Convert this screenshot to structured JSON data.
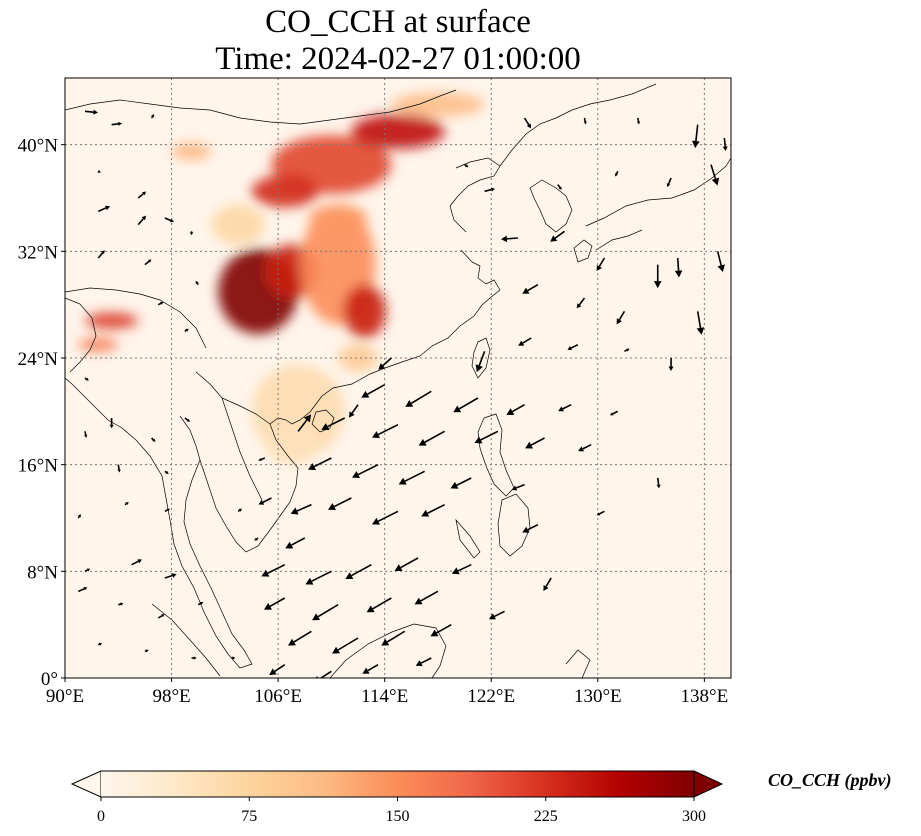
{
  "title": {
    "line1": "CO_CCH at surface",
    "line2": "Time: 2024-02-27 01:00:00"
  },
  "map": {
    "lon_range": [
      90,
      140
    ],
    "lat_range": [
      0,
      45
    ],
    "lon_ticks": [
      90,
      98,
      106,
      114,
      122,
      130,
      138
    ],
    "lat_ticks": [
      0,
      8,
      16,
      24,
      32,
      40
    ],
    "lon_tick_labels": [
      "90°E",
      "98°E",
      "106°E",
      "114°E",
      "122°E",
      "130°E",
      "138°E"
    ],
    "lat_tick_labels": [
      "0°",
      "8°N",
      "16°N",
      "24°N",
      "32°N",
      "40°N"
    ],
    "gridlines": true,
    "background_color": "#fff5eb"
  },
  "colorbar": {
    "label": "CO_CCH (ppbv)",
    "ticks": [
      0,
      75,
      150,
      225,
      300
    ],
    "tick_labels": [
      "0",
      "75",
      "150",
      "225",
      "300"
    ],
    "range": [
      0,
      300
    ],
    "extend": "both",
    "colormap": "OrRd",
    "colors": [
      "#fff7ec",
      "#fee8c8",
      "#fdd49e",
      "#fdbb84",
      "#fc8d59",
      "#ef6548",
      "#d7301f",
      "#b30000",
      "#7f0000"
    ]
  },
  "plumes": [
    {
      "lon": 104.5,
      "lat": 29.0,
      "rlon": 3.0,
      "rlat": 3.2,
      "value": 300
    },
    {
      "lon": 107.0,
      "lat": 30.5,
      "rlon": 2.0,
      "rlat": 2.0,
      "value": 240
    },
    {
      "lon": 110.5,
      "lat": 31.0,
      "rlon": 2.8,
      "rlat": 4.5,
      "value": 150
    },
    {
      "lon": 112.5,
      "lat": 27.5,
      "rlon": 1.6,
      "rlat": 2.0,
      "value": 240
    },
    {
      "lon": 110.0,
      "lat": 38.5,
      "rlon": 4.5,
      "rlat": 2.2,
      "value": 210
    },
    {
      "lon": 115.0,
      "lat": 41.0,
      "rlon": 3.5,
      "rlat": 1.3,
      "value": 250
    },
    {
      "lon": 106.5,
      "lat": 36.5,
      "rlon": 2.5,
      "rlat": 1.2,
      "value": 230
    },
    {
      "lon": 118.0,
      "lat": 43.0,
      "rlon": 3.5,
      "rlat": 0.9,
      "value": 110
    },
    {
      "lon": 110.5,
      "lat": 34.5,
      "rlon": 2.2,
      "rlat": 1.0,
      "value": 140
    },
    {
      "lon": 107.5,
      "lat": 20.0,
      "rlon": 3.5,
      "rlat": 3.5,
      "value": 60
    },
    {
      "lon": 107.0,
      "lat": 17.5,
      "rlon": 2.0,
      "rlat": 1.5,
      "value": 50
    },
    {
      "lon": 93.5,
      "lat": 26.8,
      "rlon": 2.0,
      "rlat": 0.6,
      "value": 220
    },
    {
      "lon": 92.5,
      "lat": 25.0,
      "rlon": 1.5,
      "rlat": 0.5,
      "value": 170
    },
    {
      "lon": 99.5,
      "lat": 39.5,
      "rlon": 1.5,
      "rlat": 0.6,
      "value": 120
    },
    {
      "lon": 103.0,
      "lat": 34.0,
      "rlon": 2.0,
      "rlat": 1.5,
      "value": 70
    },
    {
      "lon": 112.0,
      "lat": 24.0,
      "rlon": 1.5,
      "rlat": 1.0,
      "value": 90
    }
  ],
  "wind_vectors": [
    {
      "lon": 91.5,
      "lat": 42.5,
      "u": 1.0,
      "v": -0.1
    },
    {
      "lon": 93.5,
      "lat": 41.5,
      "u": 0.8,
      "v": 0.1
    },
    {
      "lon": 96.5,
      "lat": 42.0,
      "u": 0.2,
      "v": 0.3
    },
    {
      "lon": 92.5,
      "lat": 38.0,
      "u": 0.2,
      "v": -0.1
    },
    {
      "lon": 95.5,
      "lat": 36.0,
      "u": 0.6,
      "v": 0.5
    },
    {
      "lon": 92.5,
      "lat": 35.0,
      "u": 0.9,
      "v": 0.4
    },
    {
      "lon": 95.5,
      "lat": 34.0,
      "u": 0.6,
      "v": 0.7
    },
    {
      "lon": 97.5,
      "lat": 34.5,
      "u": 0.7,
      "v": -0.3
    },
    {
      "lon": 92.5,
      "lat": 31.5,
      "u": 0.5,
      "v": 0.6
    },
    {
      "lon": 96.0,
      "lat": 31.0,
      "u": 0.5,
      "v": 0.4
    },
    {
      "lon": 99.5,
      "lat": 33.5,
      "u": 0.0,
      "v": -0.3
    },
    {
      "lon": 100.0,
      "lat": 29.5,
      "u": -0.2,
      "v": 0.3
    },
    {
      "lon": 97.0,
      "lat": 28.0,
      "u": 0.4,
      "v": 0.2
    },
    {
      "lon": 99.0,
      "lat": 26.0,
      "u": 0.3,
      "v": 0.2
    },
    {
      "lon": 91.5,
      "lat": 22.5,
      "u": 0.3,
      "v": -0.2
    },
    {
      "lon": 93.5,
      "lat": 19.5,
      "u": 0.0,
      "v": -0.8
    },
    {
      "lon": 91.5,
      "lat": 18.5,
      "u": 0.1,
      "v": -0.5
    },
    {
      "lon": 96.5,
      "lat": 18.0,
      "u": 0.3,
      "v": -0.3
    },
    {
      "lon": 99.0,
      "lat": 19.5,
      "u": 0.4,
      "v": -0.3
    },
    {
      "lon": 94.0,
      "lat": 16.0,
      "u": 0.1,
      "v": -0.6
    },
    {
      "lon": 97.5,
      "lat": 15.5,
      "u": 0.3,
      "v": -0.2
    },
    {
      "lon": 91.0,
      "lat": 12.0,
      "u": 0.2,
      "v": 0.3
    },
    {
      "lon": 94.5,
      "lat": 13.0,
      "u": 0.3,
      "v": 0.2
    },
    {
      "lon": 97.5,
      "lat": 12.5,
      "u": 0.4,
      "v": 0.2
    },
    {
      "lon": 91.5,
      "lat": 8.0,
      "u": 0.4,
      "v": 0.2
    },
    {
      "lon": 95.0,
      "lat": 8.5,
      "u": 0.8,
      "v": 0.4
    },
    {
      "lon": 97.5,
      "lat": 7.5,
      "u": 0.9,
      "v": 0.3
    },
    {
      "lon": 91.0,
      "lat": 6.5,
      "u": 0.7,
      "v": 0.3
    },
    {
      "lon": 94.0,
      "lat": 5.5,
      "u": 0.4,
      "v": 0.1
    },
    {
      "lon": 97.0,
      "lat": 4.5,
      "u": 0.5,
      "v": 0.3
    },
    {
      "lon": 100.0,
      "lat": 5.5,
      "u": 0.4,
      "v": 0.2
    },
    {
      "lon": 92.5,
      "lat": 2.5,
      "u": 0.3,
      "v": 0.1
    },
    {
      "lon": 96.0,
      "lat": 2.0,
      "u": 0.3,
      "v": 0.1
    },
    {
      "lon": 99.5,
      "lat": 1.5,
      "u": 0.4,
      "v": 0.0
    },
    {
      "lon": 102.5,
      "lat": 1.5,
      "u": 0.3,
      "v": 0.0
    },
    {
      "lon": 103.0,
      "lat": 12.5,
      "u": 0.3,
      "v": 0.2
    },
    {
      "lon": 104.5,
      "lat": 10.5,
      "u": -0.3,
      "v": -0.2
    },
    {
      "lon": 108.0,
      "lat": 10.5,
      "u": -1.5,
      "v": -0.8
    },
    {
      "lon": 106.5,
      "lat": 8.5,
      "u": -1.8,
      "v": -0.9
    },
    {
      "lon": 110.0,
      "lat": 8.0,
      "u": -2.0,
      "v": -1.0
    },
    {
      "lon": 113.0,
      "lat": 8.5,
      "u": -2.0,
      "v": -1.1
    },
    {
      "lon": 116.5,
      "lat": 9.0,
      "u": -1.8,
      "v": -1.0
    },
    {
      "lon": 120.5,
      "lat": 8.5,
      "u": -1.5,
      "v": -0.7
    },
    {
      "lon": 106.5,
      "lat": 6.0,
      "u": -1.6,
      "v": -0.9
    },
    {
      "lon": 110.5,
      "lat": 5.5,
      "u": -2.0,
      "v": -1.2
    },
    {
      "lon": 114.5,
      "lat": 6.0,
      "u": -1.9,
      "v": -1.1
    },
    {
      "lon": 118.0,
      "lat": 6.5,
      "u": -1.8,
      "v": -1.0
    },
    {
      "lon": 108.5,
      "lat": 3.5,
      "u": -1.8,
      "v": -1.1
    },
    {
      "lon": 112.0,
      "lat": 3.0,
      "u": -2.0,
      "v": -1.2
    },
    {
      "lon": 115.5,
      "lat": 3.5,
      "u": -1.8,
      "v": -1.1
    },
    {
      "lon": 119.0,
      "lat": 4.0,
      "u": -1.6,
      "v": -0.9
    },
    {
      "lon": 123.0,
      "lat": 5.0,
      "u": -1.2,
      "v": -0.6
    },
    {
      "lon": 106.5,
      "lat": 1.0,
      "u": -1.2,
      "v": -0.8
    },
    {
      "lon": 110.0,
      "lat": 0.5,
      "u": -1.4,
      "v": -0.9
    },
    {
      "lon": 113.5,
      "lat": 1.0,
      "u": -1.2,
      "v": -0.7
    },
    {
      "lon": 117.5,
      "lat": 1.5,
      "u": -1.2,
      "v": -0.6
    },
    {
      "lon": 105.5,
      "lat": 13.5,
      "u": -1.0,
      "v": -0.5
    },
    {
      "lon": 108.5,
      "lat": 13.0,
      "u": -1.6,
      "v": -0.7
    },
    {
      "lon": 111.5,
      "lat": 13.5,
      "u": -1.8,
      "v": -0.9
    },
    {
      "lon": 115.0,
      "lat": 12.5,
      "u": -2.0,
      "v": -1.0
    },
    {
      "lon": 118.5,
      "lat": 13.0,
      "u": -1.8,
      "v": -0.9
    },
    {
      "lon": 125.5,
      "lat": 11.5,
      "u": -1.2,
      "v": -0.6
    },
    {
      "lon": 110.0,
      "lat": 16.5,
      "u": -1.8,
      "v": -0.9
    },
    {
      "lon": 113.5,
      "lat": 16.0,
      "u": -2.0,
      "v": -1.0
    },
    {
      "lon": 117.0,
      "lat": 15.5,
      "u": -2.0,
      "v": -1.0
    },
    {
      "lon": 120.5,
      "lat": 15.0,
      "u": -1.6,
      "v": -0.8
    },
    {
      "lon": 124.5,
      "lat": 14.5,
      "u": -1.0,
      "v": -0.4
    },
    {
      "lon": 111.0,
      "lat": 19.5,
      "u": -1.8,
      "v": -0.9
    },
    {
      "lon": 115.0,
      "lat": 19.0,
      "u": -2.0,
      "v": -1.0
    },
    {
      "lon": 118.5,
      "lat": 18.5,
      "u": -2.0,
      "v": -1.1
    },
    {
      "lon": 122.5,
      "lat": 18.5,
      "u": -1.8,
      "v": -0.9
    },
    {
      "lon": 126.0,
      "lat": 18.0,
      "u": -1.5,
      "v": -0.8
    },
    {
      "lon": 129.5,
      "lat": 17.5,
      "u": -1.0,
      "v": -0.5
    },
    {
      "lon": 114.0,
      "lat": 22.0,
      "u": -1.8,
      "v": -1.0
    },
    {
      "lon": 117.5,
      "lat": 21.5,
      "u": -2.0,
      "v": -1.2
    },
    {
      "lon": 121.0,
      "lat": 21.0,
      "u": -1.9,
      "v": -1.1
    },
    {
      "lon": 124.5,
      "lat": 20.5,
      "u": -1.4,
      "v": -0.8
    },
    {
      "lon": 128.0,
      "lat": 20.5,
      "u": -1.0,
      "v": -0.5
    },
    {
      "lon": 131.5,
      "lat": 20.0,
      "u": -0.6,
      "v": -0.3
    },
    {
      "lon": 121.5,
      "lat": 24.5,
      "u": -0.6,
      "v": -1.6
    },
    {
      "lon": 125.0,
      "lat": 25.5,
      "u": -1.0,
      "v": -0.6
    },
    {
      "lon": 128.5,
      "lat": 25.0,
      "u": -0.8,
      "v": -0.4
    },
    {
      "lon": 132.0,
      "lat": 24.5,
      "u": 0.4,
      "v": 0.2
    },
    {
      "lon": 125.5,
      "lat": 29.5,
      "u": -1.2,
      "v": -0.7
    },
    {
      "lon": 129.0,
      "lat": 28.5,
      "u": -0.6,
      "v": -0.8
    },
    {
      "lon": 132.0,
      "lat": 27.5,
      "u": -0.6,
      "v": -1.0
    },
    {
      "lon": 124.0,
      "lat": 33.0,
      "u": -1.3,
      "v": -0.1
    },
    {
      "lon": 127.5,
      "lat": 33.5,
      "u": -1.1,
      "v": -0.8
    },
    {
      "lon": 130.5,
      "lat": 31.5,
      "u": -0.6,
      "v": -1.0
    },
    {
      "lon": 134.5,
      "lat": 31.0,
      "u": 0.0,
      "v": -1.8
    },
    {
      "lon": 136.0,
      "lat": 31.5,
      "u": 0.1,
      "v": -1.5
    },
    {
      "lon": 137.5,
      "lat": 27.5,
      "u": 0.3,
      "v": -1.8
    },
    {
      "lon": 135.5,
      "lat": 24.0,
      "u": 0.0,
      "v": -1.0
    },
    {
      "lon": 139.0,
      "lat": 32.0,
      "u": 0.4,
      "v": -1.6
    },
    {
      "lon": 137.5,
      "lat": 41.5,
      "u": -0.2,
      "v": -1.8
    },
    {
      "lon": 138.5,
      "lat": 38.5,
      "u": 0.5,
      "v": -1.6
    },
    {
      "lon": 139.5,
      "lat": 40.5,
      "u": 0.1,
      "v": -1.0
    },
    {
      "lon": 135.5,
      "lat": 37.5,
      "u": -0.3,
      "v": -0.7
    },
    {
      "lon": 131.5,
      "lat": 38.0,
      "u": -0.2,
      "v": -0.4
    },
    {
      "lon": 127.0,
      "lat": 37.0,
      "u": 0.3,
      "v": -0.4
    },
    {
      "lon": 120.0,
      "lat": 38.5,
      "u": 0.3,
      "v": -0.2
    },
    {
      "lon": 124.5,
      "lat": 42.0,
      "u": 0.5,
      "v": -0.8
    },
    {
      "lon": 129.0,
      "lat": 42.0,
      "u": 0.1,
      "v": -0.5
    },
    {
      "lon": 133.0,
      "lat": 42.0,
      "u": 0.1,
      "v": -0.5
    },
    {
      "lon": 121.5,
      "lat": 36.5,
      "u": 0.8,
      "v": 0.2
    },
    {
      "lon": 114.5,
      "lat": 24.0,
      "u": -1.0,
      "v": -0.9
    },
    {
      "lon": 107.5,
      "lat": 18.5,
      "u": 1.0,
      "v": 1.3
    },
    {
      "lon": 112.0,
      "lat": 20.5,
      "u": -0.7,
      "v": -1.0
    },
    {
      "lon": 105.0,
      "lat": 16.5,
      "u": -0.5,
      "v": -0.2
    },
    {
      "lon": 130.5,
      "lat": 12.5,
      "u": -0.6,
      "v": -0.3
    },
    {
      "lon": 126.5,
      "lat": 7.5,
      "u": -0.6,
      "v": -1.0
    },
    {
      "lon": 134.5,
      "lat": 15.0,
      "u": 0.1,
      "v": -0.8
    }
  ]
}
